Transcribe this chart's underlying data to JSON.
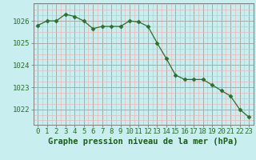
{
  "hours": [
    0,
    1,
    2,
    3,
    4,
    5,
    6,
    7,
    8,
    9,
    10,
    11,
    12,
    13,
    14,
    15,
    16,
    17,
    18,
    19,
    20,
    21,
    22,
    23
  ],
  "pressure": [
    1025.8,
    1026.0,
    1026.0,
    1026.3,
    1026.2,
    1026.0,
    1025.65,
    1025.75,
    1025.75,
    1025.75,
    1026.0,
    1025.95,
    1025.75,
    1025.0,
    1024.3,
    1023.55,
    1023.35,
    1023.35,
    1023.35,
    1023.1,
    1022.85,
    1022.6,
    1022.0,
    1021.65
  ],
  "line_color": "#2d6e2d",
  "marker": "D",
  "marker_size": 2.5,
  "bg_color": "#c8eef0",
  "grid_major_color": "#aaaaaa",
  "grid_minor_color": "#e8b8b8",
  "xlabel": "Graphe pression niveau de la mer (hPa)",
  "xlabel_color": "#1a5c1a",
  "xlabel_fontsize": 7.5,
  "ylabel_ticks": [
    1022,
    1023,
    1024,
    1025,
    1026
  ],
  "ylim": [
    1021.3,
    1026.8
  ],
  "xlim": [
    -0.5,
    23.5
  ],
  "tick_fontsize": 6.5,
  "tick_color": "#2d6e2d",
  "spine_color": "#808080"
}
